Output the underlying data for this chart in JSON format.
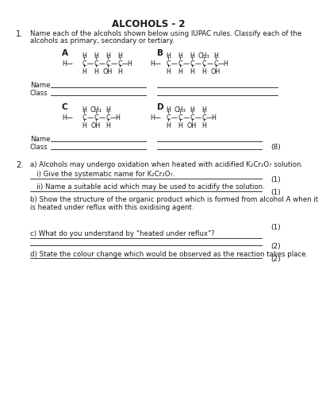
{
  "title": "ALCOHOLS - 2",
  "bg_color": "#ffffff",
  "q1_num": "1.",
  "q1_intro_line1": "Name each of the alcohols shown below using IUPAC rules. Classify each of the",
  "q1_intro_line2": "alcohols as primary, secondary or tertiary.",
  "q2_num": "2.",
  "q2_a": "a) Alcohols may undergo oxidation when heated with acidified K₂Cr₂O₇ solution.",
  "q2_a_i": "   i) Give the systematic name for K₂Cr₂O₇.",
  "q2_a_ii": "   ii) Name a suitable acid which may be used to acidify the solution.",
  "q2_b": "b) Show the structure of the organic product which is formed from alcohol A when it\nis heated under reflux with this oxidising agent.",
  "q2_c": "c) What do you understand by \"heated under reflux\"?",
  "q2_d": "d) State the colour change which would be observed as the reaction takes place.",
  "mark1": "(1)",
  "mark2": "(2)",
  "mark8": "(8)",
  "name_label": "Name",
  "class_label": "Class"
}
